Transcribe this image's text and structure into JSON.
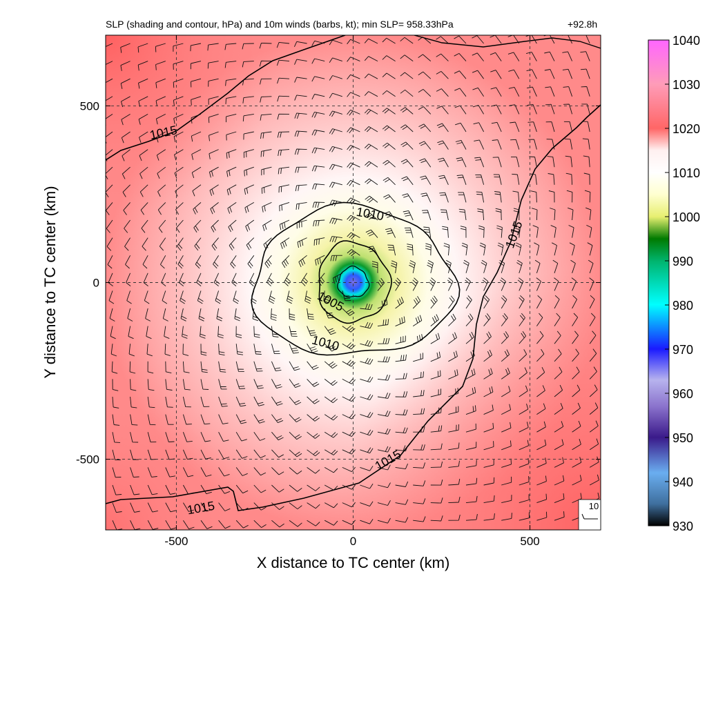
{
  "header": {
    "title": "SLP (shading and contour, hPa) and 10m winds (barbs, kt); min SLP= 958.33hPa",
    "time_label": "+92.8h"
  },
  "chart_data": {
    "type": "heatmap",
    "variable": "SLP (hPa) with 10m wind barbs (kt)",
    "min_slp": 958.33,
    "min_slp_units": "hPa",
    "forecast_hour": "+92.8h",
    "xlabel": "X distance to TC center (km)",
    "ylabel": "Y distance to TC center (km)",
    "xlim": [
      -700,
      700
    ],
    "ylim": [
      -700,
      700
    ],
    "xticks": [
      -500,
      0,
      500
    ],
    "yticks": [
      -500,
      0,
      500
    ],
    "grid": "dashed at -500, 0, 500 km",
    "colorbar": {
      "ticks": [
        1040,
        1030,
        1020,
        1010,
        1000,
        990,
        980,
        970,
        960,
        950,
        940,
        930
      ],
      "range": [
        930,
        1040
      ],
      "colors": [
        "#000000",
        "#3f6f9e",
        "#6aaef0",
        "#3a1a8a",
        "#8a72cc",
        "#b7b3ee",
        "#1a1aff",
        "#00ffff",
        "#00b46e",
        "#007a00",
        "#e7ef70",
        "#ffffd0",
        "#ffffff",
        "#fff0f0",
        "#ff6666",
        "#fe9cb8",
        "#ff66ff"
      ]
    },
    "contours": [
      {
        "level": "1005"
      },
      {
        "level": "1010"
      },
      {
        "level": "1015"
      }
    ],
    "contour_labels": [
      "1005",
      "1010",
      "1010",
      "1015",
      "1015",
      "1015",
      "1015"
    ],
    "barb_reference": {
      "label": "10",
      "units": "kt"
    },
    "center": {
      "x": 0,
      "y": 0
    }
  }
}
